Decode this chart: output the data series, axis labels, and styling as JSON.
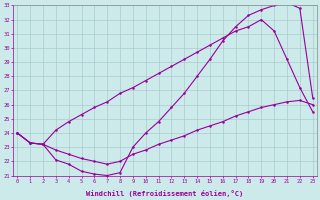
{
  "xlabel": "Windchill (Refroidissement éolien,°C)",
  "xlim": [
    0,
    23
  ],
  "ylim": [
    21,
    33
  ],
  "bg_color": "#cceaea",
  "line_color": "#990099",
  "grid_color": "#aacccc",
  "line1_y": [
    24.0,
    23.3,
    23.2,
    22.1,
    21.8,
    21.3,
    21.1,
    21.0,
    21.2,
    23.0,
    24.0,
    24.8,
    25.8,
    26.8,
    28.0,
    29.2,
    30.5,
    31.5,
    32.3,
    32.7,
    33.0,
    33.2,
    32.8,
    26.5
  ],
  "line2_y": [
    24.0,
    23.3,
    23.2,
    24.2,
    24.8,
    25.3,
    25.8,
    26.2,
    26.8,
    27.2,
    27.7,
    28.2,
    28.7,
    29.2,
    29.7,
    30.2,
    30.7,
    31.2,
    31.5,
    32.0,
    31.2,
    29.2,
    27.2,
    25.5
  ],
  "line3_y": [
    24.0,
    23.3,
    23.2,
    22.8,
    22.5,
    22.2,
    22.0,
    21.8,
    22.0,
    22.5,
    22.8,
    23.2,
    23.5,
    23.8,
    24.2,
    24.5,
    24.8,
    25.2,
    25.5,
    25.8,
    26.0,
    26.2,
    26.3,
    26.0
  ]
}
